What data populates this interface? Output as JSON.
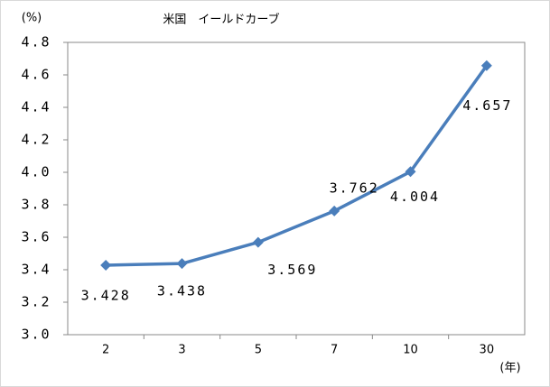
{
  "chart_data": {
    "type": "line",
    "title": "米国　イールドカーブ",
    "y_label": "(%)",
    "x_label": "(年)",
    "categories": [
      "2",
      "3",
      "5",
      "7",
      "10",
      "30"
    ],
    "values": [
      3.428,
      3.438,
      3.569,
      3.762,
      4.004,
      4.657
    ],
    "color": "#4a7ebb",
    "ylim": [
      3.0,
      4.8
    ],
    "yticks": [
      {
        "value": 3.0,
        "label": "3.0"
      },
      3.2,
      3.4,
      3.6,
      3.8,
      {
        "value": 4.0,
        "label": "4.0"
      },
      4.2,
      4.4,
      4.6,
      4.8
    ],
    "grid": false
  }
}
